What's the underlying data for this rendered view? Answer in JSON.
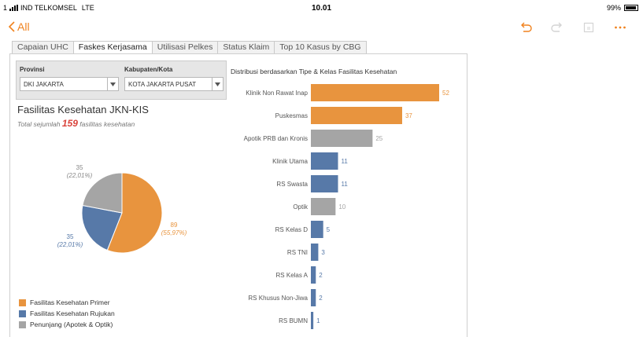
{
  "status_bar": {
    "signal_prefix": "1",
    "carrier": "IND TELKOMSEL",
    "network": "LTE",
    "time": "10.01",
    "battery": "99%"
  },
  "nav": {
    "back_label": "All",
    "icons": [
      "undo-icon",
      "redo-icon",
      "share-icon",
      "more-icon"
    ]
  },
  "tabs": [
    {
      "label": "Capaian UHC",
      "active": false
    },
    {
      "label": "Faskes Kerjasama",
      "active": true
    },
    {
      "label": "Utilisasi Pelkes",
      "active": false
    },
    {
      "label": "Status Klaim",
      "active": false
    },
    {
      "label": "Top 10 Kasus by CBG",
      "active": false
    }
  ],
  "filters": {
    "provinsi": {
      "label": "Provinsi",
      "value": "DKI JAKARTA"
    },
    "kabupaten": {
      "label": "Kabupaten/Kota",
      "value": "KOTA JAKARTA PUSAT"
    }
  },
  "kpi": {
    "title": "Fasilitas Kesehatan JKN-KIS",
    "prefix": "Total sejumlah",
    "total": "159",
    "suffix": "fasilitas kesehatan"
  },
  "colors": {
    "primer": "#e8943e",
    "rujukan": "#5779a8",
    "penunjang": "#a5a5a5"
  },
  "chart_data": [
    {
      "type": "pie",
      "slices": [
        {
          "name": "Fasilitas Kesehatan Primer",
          "value": 89,
          "pct_label": "(55,97%)",
          "color": "#e8943e"
        },
        {
          "name": "Fasilitas Kesehatan Rujukan",
          "value": 35,
          "pct_label": "(22,01%)",
          "color": "#5779a8"
        },
        {
          "name": "Penunjang (Apotek & Optik)",
          "value": 35,
          "pct_label": "(22,01%)",
          "color": "#a5a5a5"
        }
      ],
      "legend": [
        "Fasilitas Kesehatan Primer",
        "Fasilitas Kesehatan Rujukan",
        "Penunjang (Apotek & Optik)"
      ],
      "legend_position": "bottom-left"
    },
    {
      "type": "bar",
      "orientation": "horizontal",
      "title": "Distribusi berdasarkan Tipe & Kelas Fasilitas Kesehatan",
      "categories": [
        "Klinik Non Rawat Inap",
        "Puskesmas",
        "Apotik PRB dan Kronis",
        "Klinik Utama",
        "RS Swasta",
        "Optik",
        "RS Kelas D",
        "RS TNI",
        "RS Kelas A",
        "RS Khusus Non-Jiwa",
        "RS BUMN"
      ],
      "values": [
        52,
        37,
        25,
        11,
        11,
        10,
        5,
        3,
        2,
        2,
        1
      ],
      "colors": [
        "#e8943e",
        "#e8943e",
        "#a5a5a5",
        "#5779a8",
        "#5779a8",
        "#a5a5a5",
        "#5779a8",
        "#5779a8",
        "#5779a8",
        "#5779a8",
        "#5779a8"
      ],
      "grid": false
    }
  ]
}
